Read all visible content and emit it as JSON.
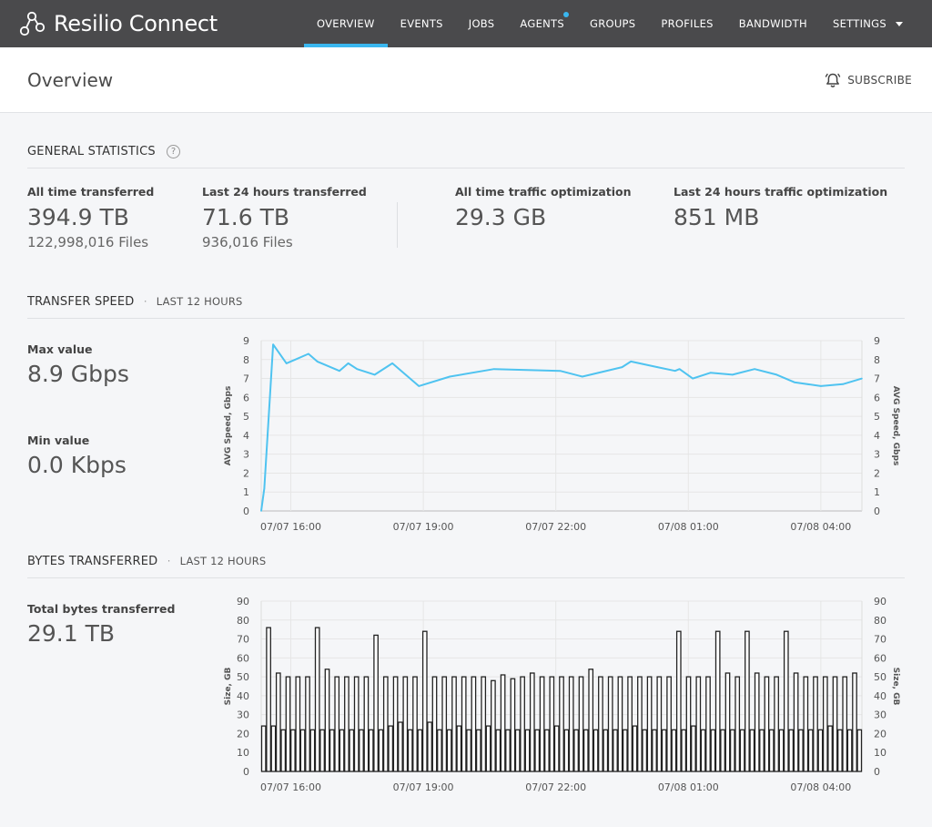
{
  "app": {
    "brand": "Resilio Connect",
    "nav": [
      {
        "label": "OVERVIEW",
        "active": true,
        "dot": false
      },
      {
        "label": "EVENTS",
        "active": false,
        "dot": false
      },
      {
        "label": "JOBS",
        "active": false,
        "dot": false
      },
      {
        "label": "AGENTS",
        "active": false,
        "dot": true
      },
      {
        "label": "GROUPS",
        "active": false,
        "dot": false
      },
      {
        "label": "PROFILES",
        "active": false,
        "dot": false
      },
      {
        "label": "BANDWIDTH",
        "active": false,
        "dot": false
      },
      {
        "label": "SETTINGS",
        "active": false,
        "dot": false,
        "dropdown": true
      }
    ]
  },
  "page": {
    "title": "Overview",
    "subscribe_label": "SUBSCRIBE"
  },
  "general": {
    "title": "GENERAL STATISTICS",
    "help": "?",
    "all_time_label": "All time transferred",
    "all_time_value": "394.9 TB",
    "all_time_files": "122,998,016 Files",
    "last24_label": "Last 24 hours transferred",
    "last24_value": "71.6 TB",
    "last24_files": "936,016 Files",
    "opt_all_label": "All time traffic optimization",
    "opt_all_value": "29.3 GB",
    "opt_24_label": "Last 24 hours traffic optimization",
    "opt_24_value": "851 MB"
  },
  "transfer": {
    "title": "TRANSFER SPEED",
    "range": "LAST 12 HOURS",
    "max_label": "Max value",
    "max_value": "8.9 Gbps",
    "min_label": "Min value",
    "min_value": "0.0 Kbps"
  },
  "bytes": {
    "title": "BYTES TRANSFERRED",
    "range": "LAST 12 HOURS",
    "total_label": "Total bytes transferred",
    "total_value": "29.1 TB"
  },
  "colors": {
    "line": "#4fc3f0",
    "accent": "#3ab7ef",
    "topbar": "#4a4a4c"
  },
  "chart_data": [
    {
      "type": "line",
      "ylabel": "AVG Speed, Gbps",
      "ylim": [
        0,
        9
      ],
      "yticks": [
        0,
        1,
        2,
        3,
        4,
        5,
        6,
        7,
        8,
        9
      ],
      "xlim_hours": [
        15.33,
        28.93
      ],
      "xticks": [
        {
          "h": 16,
          "label": "07/07 16:00"
        },
        {
          "h": 19,
          "label": "07/07 19:00"
        },
        {
          "h": 22,
          "label": "07/07 22:00"
        },
        {
          "h": 25,
          "label": "07/08 01:00"
        },
        {
          "h": 28,
          "label": "07/08 04:00"
        }
      ],
      "grid": true,
      "x_hours": [
        15.33,
        15.4,
        15.6,
        15.9,
        16.1,
        16.4,
        16.6,
        17.1,
        17.3,
        17.5,
        17.9,
        18.3,
        18.9,
        19.6,
        20.6,
        22.1,
        22.6,
        23.5,
        23.7,
        24.3,
        24.7,
        24.8,
        25.1,
        25.5,
        26.0,
        26.5,
        27.0,
        27.4,
        28.0,
        28.5,
        28.93
      ],
      "y": [
        0,
        1.2,
        8.8,
        7.8,
        8.0,
        8.3,
        7.9,
        7.4,
        7.8,
        7.5,
        7.2,
        7.8,
        6.6,
        7.1,
        7.5,
        7.4,
        7.1,
        7.6,
        7.9,
        7.6,
        7.4,
        7.5,
        7.0,
        7.3,
        7.2,
        7.5,
        7.2,
        6.8,
        6.6,
        6.7,
        7.0
      ]
    },
    {
      "type": "bar",
      "ylabel": "Size, GB",
      "ylim": [
        0,
        90
      ],
      "yticks": [
        0,
        10,
        20,
        30,
        40,
        50,
        60,
        70,
        80,
        90
      ],
      "xlim_hours": [
        15.33,
        28.93
      ],
      "xticks": [
        {
          "h": 16,
          "label": "07/07 16:00"
        },
        {
          "h": 19,
          "label": "07/07 19:00"
        },
        {
          "h": 22,
          "label": "07/07 22:00"
        },
        {
          "h": 25,
          "label": "07/08 01:00"
        },
        {
          "h": 28,
          "label": "07/08 04:00"
        }
      ],
      "grid": true,
      "values": [
        24,
        76,
        24,
        52,
        22,
        50,
        22,
        50,
        22,
        50,
        22,
        76,
        22,
        54,
        22,
        50,
        22,
        50,
        22,
        50,
        22,
        50,
        22,
        72,
        22,
        50,
        24,
        50,
        26,
        50,
        22,
        50,
        22,
        74,
        26,
        50,
        22,
        50,
        22,
        50,
        24,
        50,
        22,
        50,
        22,
        50,
        24,
        48,
        22,
        51,
        22,
        49,
        22,
        50,
        22,
        52,
        22,
        50,
        22,
        50,
        24,
        50,
        22,
        50,
        22,
        50,
        22,
        54,
        22,
        50,
        22,
        50,
        22,
        50,
        22,
        50,
        24,
        50,
        22,
        50,
        22,
        50,
        22,
        50,
        22,
        74,
        22,
        50,
        24,
        50,
        22,
        50,
        22,
        74,
        22,
        52,
        22,
        50,
        22,
        74,
        22,
        52,
        22,
        50,
        22,
        50,
        22,
        74,
        22,
        52,
        22,
        50,
        22,
        50,
        22,
        50,
        24,
        50,
        22,
        50,
        22,
        52,
        22
      ]
    }
  ]
}
